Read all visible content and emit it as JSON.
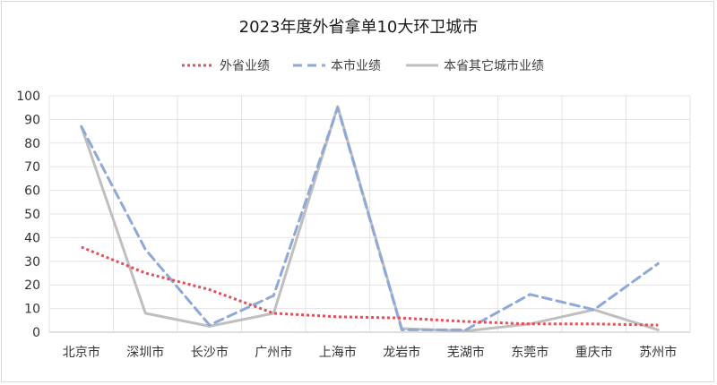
{
  "chart_data": {
    "type": "line",
    "title": "2023年度外省拿单10大环卫城市",
    "categories": [
      "北京市",
      "深圳市",
      "长沙市",
      "广州市",
      "上海市",
      "龙岩市",
      "芜湖市",
      "东莞市",
      "重庆市",
      "苏州市"
    ],
    "series": [
      {
        "name": "外省业绩",
        "color": "#e0505a",
        "dash": "dotted",
        "values": [
          36,
          25,
          18,
          8,
          6.5,
          6,
          4.5,
          3.5,
          3.5,
          3
        ]
      },
      {
        "name": "本市业绩",
        "color": "#8ea8d8",
        "dash": "dashed",
        "values": [
          87,
          35,
          3,
          15.5,
          95,
          1,
          1,
          16,
          9.5,
          29
        ]
      },
      {
        "name": "本省其它城市业绩",
        "color": "#bfbfbf",
        "dash": "solid",
        "values": [
          87,
          8,
          2.5,
          8,
          95.5,
          1.5,
          0.5,
          3.5,
          9.5,
          1
        ]
      }
    ],
    "ylim": [
      0,
      100
    ],
    "yticks": [
      0,
      10,
      20,
      30,
      40,
      50,
      60,
      70,
      80,
      90,
      100
    ],
    "grid": true,
    "legend_position": "top"
  }
}
